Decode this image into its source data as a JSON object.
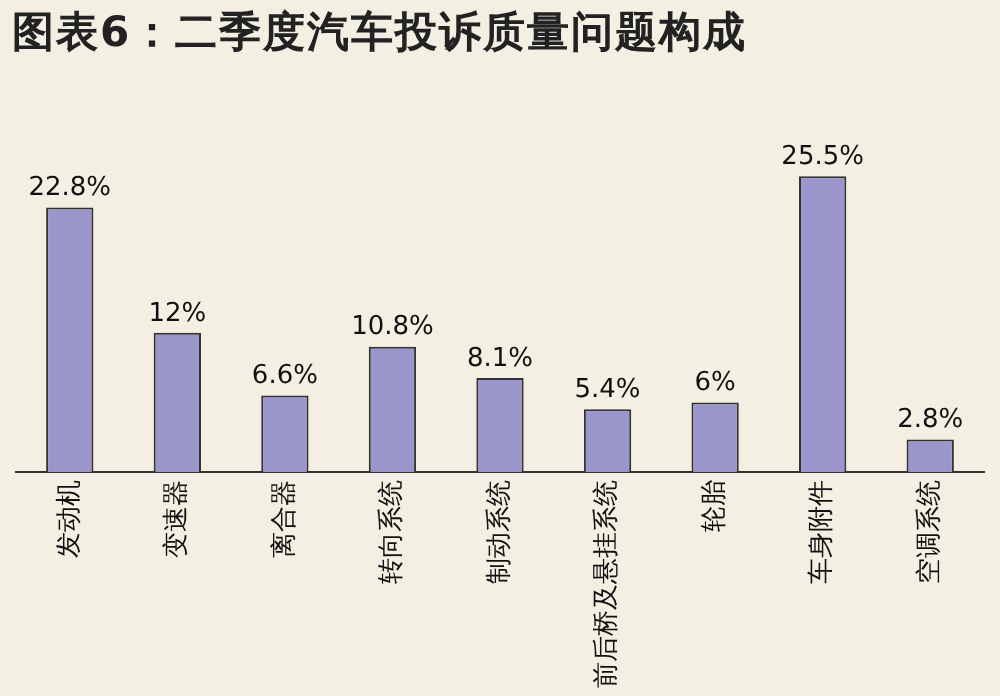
{
  "chart_data": {
    "type": "bar",
    "title": "图表6：二季度汽车投诉质量问题构成",
    "categories": [
      "发动机",
      "变速器",
      "离合器",
      "转向系统",
      "制动系统",
      "前后桥及悬挂系统",
      "轮胎",
      "车身附件",
      "空调系统"
    ],
    "values": [
      22.8,
      12,
      6.6,
      10.8,
      8.1,
      5.4,
      6,
      25.5,
      2.8
    ],
    "value_labels": [
      "22.8%",
      "12%",
      "6.6%",
      "10.8%",
      "8.1%",
      "5.4%",
      "6%",
      "25.5%",
      "2.8%"
    ],
    "color": "#9a96cc",
    "grid": false,
    "legend": false
  }
}
